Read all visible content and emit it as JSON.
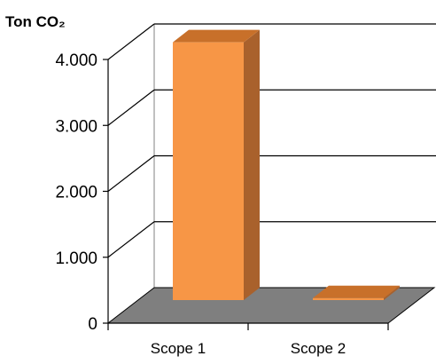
{
  "chart_data": {
    "type": "bar",
    "title": "",
    "ylabel": "Ton CO₂",
    "xlabel": "",
    "categories": [
      "Scope 1",
      "Scope 2"
    ],
    "values": [
      3950,
      30
    ],
    "ylim": [
      0,
      4000
    ],
    "yticks": [
      0,
      1000,
      2000,
      3000,
      4000
    ],
    "ytick_labels": [
      "0",
      "1.000",
      "2.000",
      "3.000",
      "4.000"
    ],
    "style": "3d",
    "grid": true,
    "colors": {
      "bar_front": "#F79646",
      "bar_side": "#A9612C",
      "bar_top": "#C8702A",
      "floor": "#7F7F7F",
      "gridline": "#000000"
    }
  }
}
